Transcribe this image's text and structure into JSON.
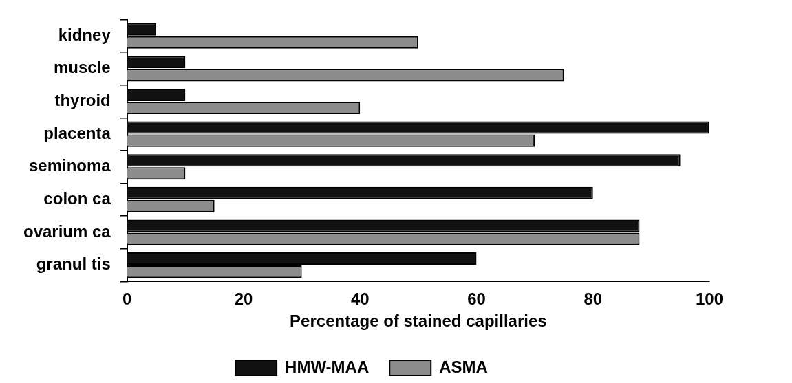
{
  "chart_data": {
    "type": "bar",
    "orientation": "horizontal",
    "categories": [
      "kidney",
      "muscle",
      "thyroid",
      "placenta",
      "seminoma",
      "colon ca",
      "ovarium ca",
      "granul tis"
    ],
    "series": [
      {
        "name": "HMW-MAA",
        "color": "#111111",
        "values": [
          5,
          10,
          10,
          100,
          95,
          80,
          88,
          60
        ]
      },
      {
        "name": "ASMA",
        "color": "#8c8c8c",
        "values": [
          50,
          75,
          40,
          70,
          10,
          15,
          88,
          30
        ]
      }
    ],
    "xlabel": "Percentage of stained capillaries",
    "xlim": [
      0,
      100
    ],
    "xticks": [
      0,
      20,
      40,
      60,
      80,
      100
    ],
    "grid": false,
    "legend": "bottom"
  }
}
